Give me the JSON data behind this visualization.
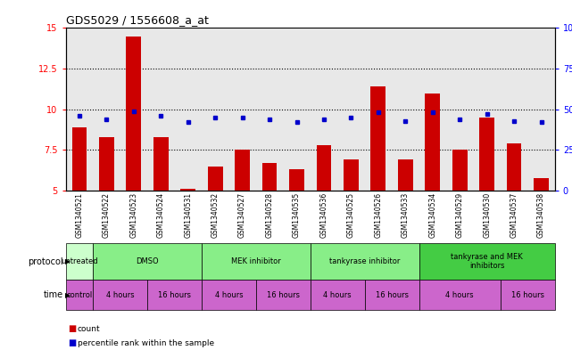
{
  "title": "GDS5029 / 1556608_a_at",
  "samples": [
    "GSM1340521",
    "GSM1340522",
    "GSM1340523",
    "GSM1340524",
    "GSM1340531",
    "GSM1340532",
    "GSM1340527",
    "GSM1340528",
    "GSM1340535",
    "GSM1340536",
    "GSM1340525",
    "GSM1340526",
    "GSM1340533",
    "GSM1340534",
    "GSM1340529",
    "GSM1340530",
    "GSM1340537",
    "GSM1340538"
  ],
  "counts": [
    8.9,
    8.3,
    14.5,
    8.3,
    5.1,
    6.5,
    7.5,
    6.7,
    6.3,
    7.8,
    6.9,
    11.4,
    6.9,
    11.0,
    7.5,
    9.5,
    7.9,
    5.8
  ],
  "percentile": [
    46,
    44,
    49,
    46,
    42,
    45,
    45,
    44,
    42,
    44,
    45,
    48,
    43,
    48,
    44,
    47,
    43,
    42
  ],
  "ylim_left": [
    5,
    15
  ],
  "ylim_right": [
    0,
    100
  ],
  "yticks_left": [
    5,
    7.5,
    10,
    12.5,
    15
  ],
  "yticks_right": [
    0,
    25,
    50,
    75,
    100
  ],
  "bar_color": "#cc0000",
  "dot_color": "#0000cc",
  "bg_color": "#ffffff",
  "col_bg": "#e8e8e8",
  "protocol_groups": [
    {
      "label": "untreated",
      "start": 0,
      "end": 1,
      "color": "#ccffcc"
    },
    {
      "label": "DMSO",
      "start": 1,
      "end": 5,
      "color": "#88ee88"
    },
    {
      "label": "MEK inhibitor",
      "start": 5,
      "end": 9,
      "color": "#88ee88"
    },
    {
      "label": "tankyrase inhibitor",
      "start": 9,
      "end": 13,
      "color": "#88ee88"
    },
    {
      "label": "tankyrase and MEK\ninhibitors",
      "start": 13,
      "end": 18,
      "color": "#44cc44"
    }
  ],
  "time_groups": [
    {
      "label": "control",
      "start": 0,
      "end": 1,
      "color": "#cc66cc"
    },
    {
      "label": "4 hours",
      "start": 1,
      "end": 3,
      "color": "#cc66cc"
    },
    {
      "label": "16 hours",
      "start": 3,
      "end": 5,
      "color": "#cc66cc"
    },
    {
      "label": "4 hours",
      "start": 5,
      "end": 7,
      "color": "#cc66cc"
    },
    {
      "label": "16 hours",
      "start": 7,
      "end": 9,
      "color": "#cc66cc"
    },
    {
      "label": "4 hours",
      "start": 9,
      "end": 11,
      "color": "#cc66cc"
    },
    {
      "label": "16 hours",
      "start": 11,
      "end": 13,
      "color": "#cc66cc"
    },
    {
      "label": "4 hours",
      "start": 13,
      "end": 16,
      "color": "#cc66cc"
    },
    {
      "label": "16 hours",
      "start": 16,
      "end": 18,
      "color": "#cc66cc"
    }
  ]
}
